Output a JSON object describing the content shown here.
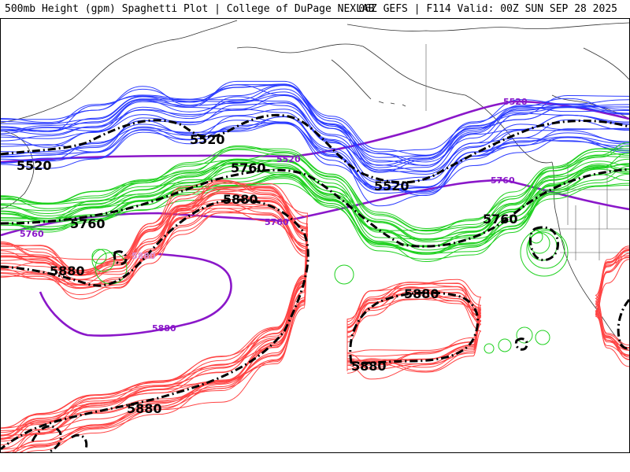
{
  "header": {
    "left_title": "500mb Height (gpm) Spaghetti Plot | College of DuPage NEXLAB",
    "right_title": "06Z GEFS | F114 Valid: 00Z SUN SEP 28 2025"
  },
  "colors": {
    "contour_5520": "#2b3bff",
    "contour_5760": "#1fd11f",
    "contour_5880": "#ff4444",
    "climatology": "#8a17c9",
    "mean": "#000000",
    "coastline": "#333333"
  },
  "labels": {
    "mean_5520_a": "5520",
    "mean_5520_b": "5520",
    "mean_5520_c": "5520",
    "mean_5760_a": "5760",
    "mean_5760_b": "5760",
    "mean_5760_c": "5760",
    "mean_5880_a": "5880",
    "mean_5880_b": "5880",
    "mean_5880_c": "5880",
    "mean_5880_d": "5880",
    "mean_5880_e": "5880",
    "clim_5520_a": "5520",
    "clim_5520_b": "5520",
    "clim_5760_a": "5760",
    "clim_5760_b": "5760",
    "clim_5760_c": "5760",
    "clim_5880_a": "5880",
    "clim_5880_b": "5880"
  }
}
